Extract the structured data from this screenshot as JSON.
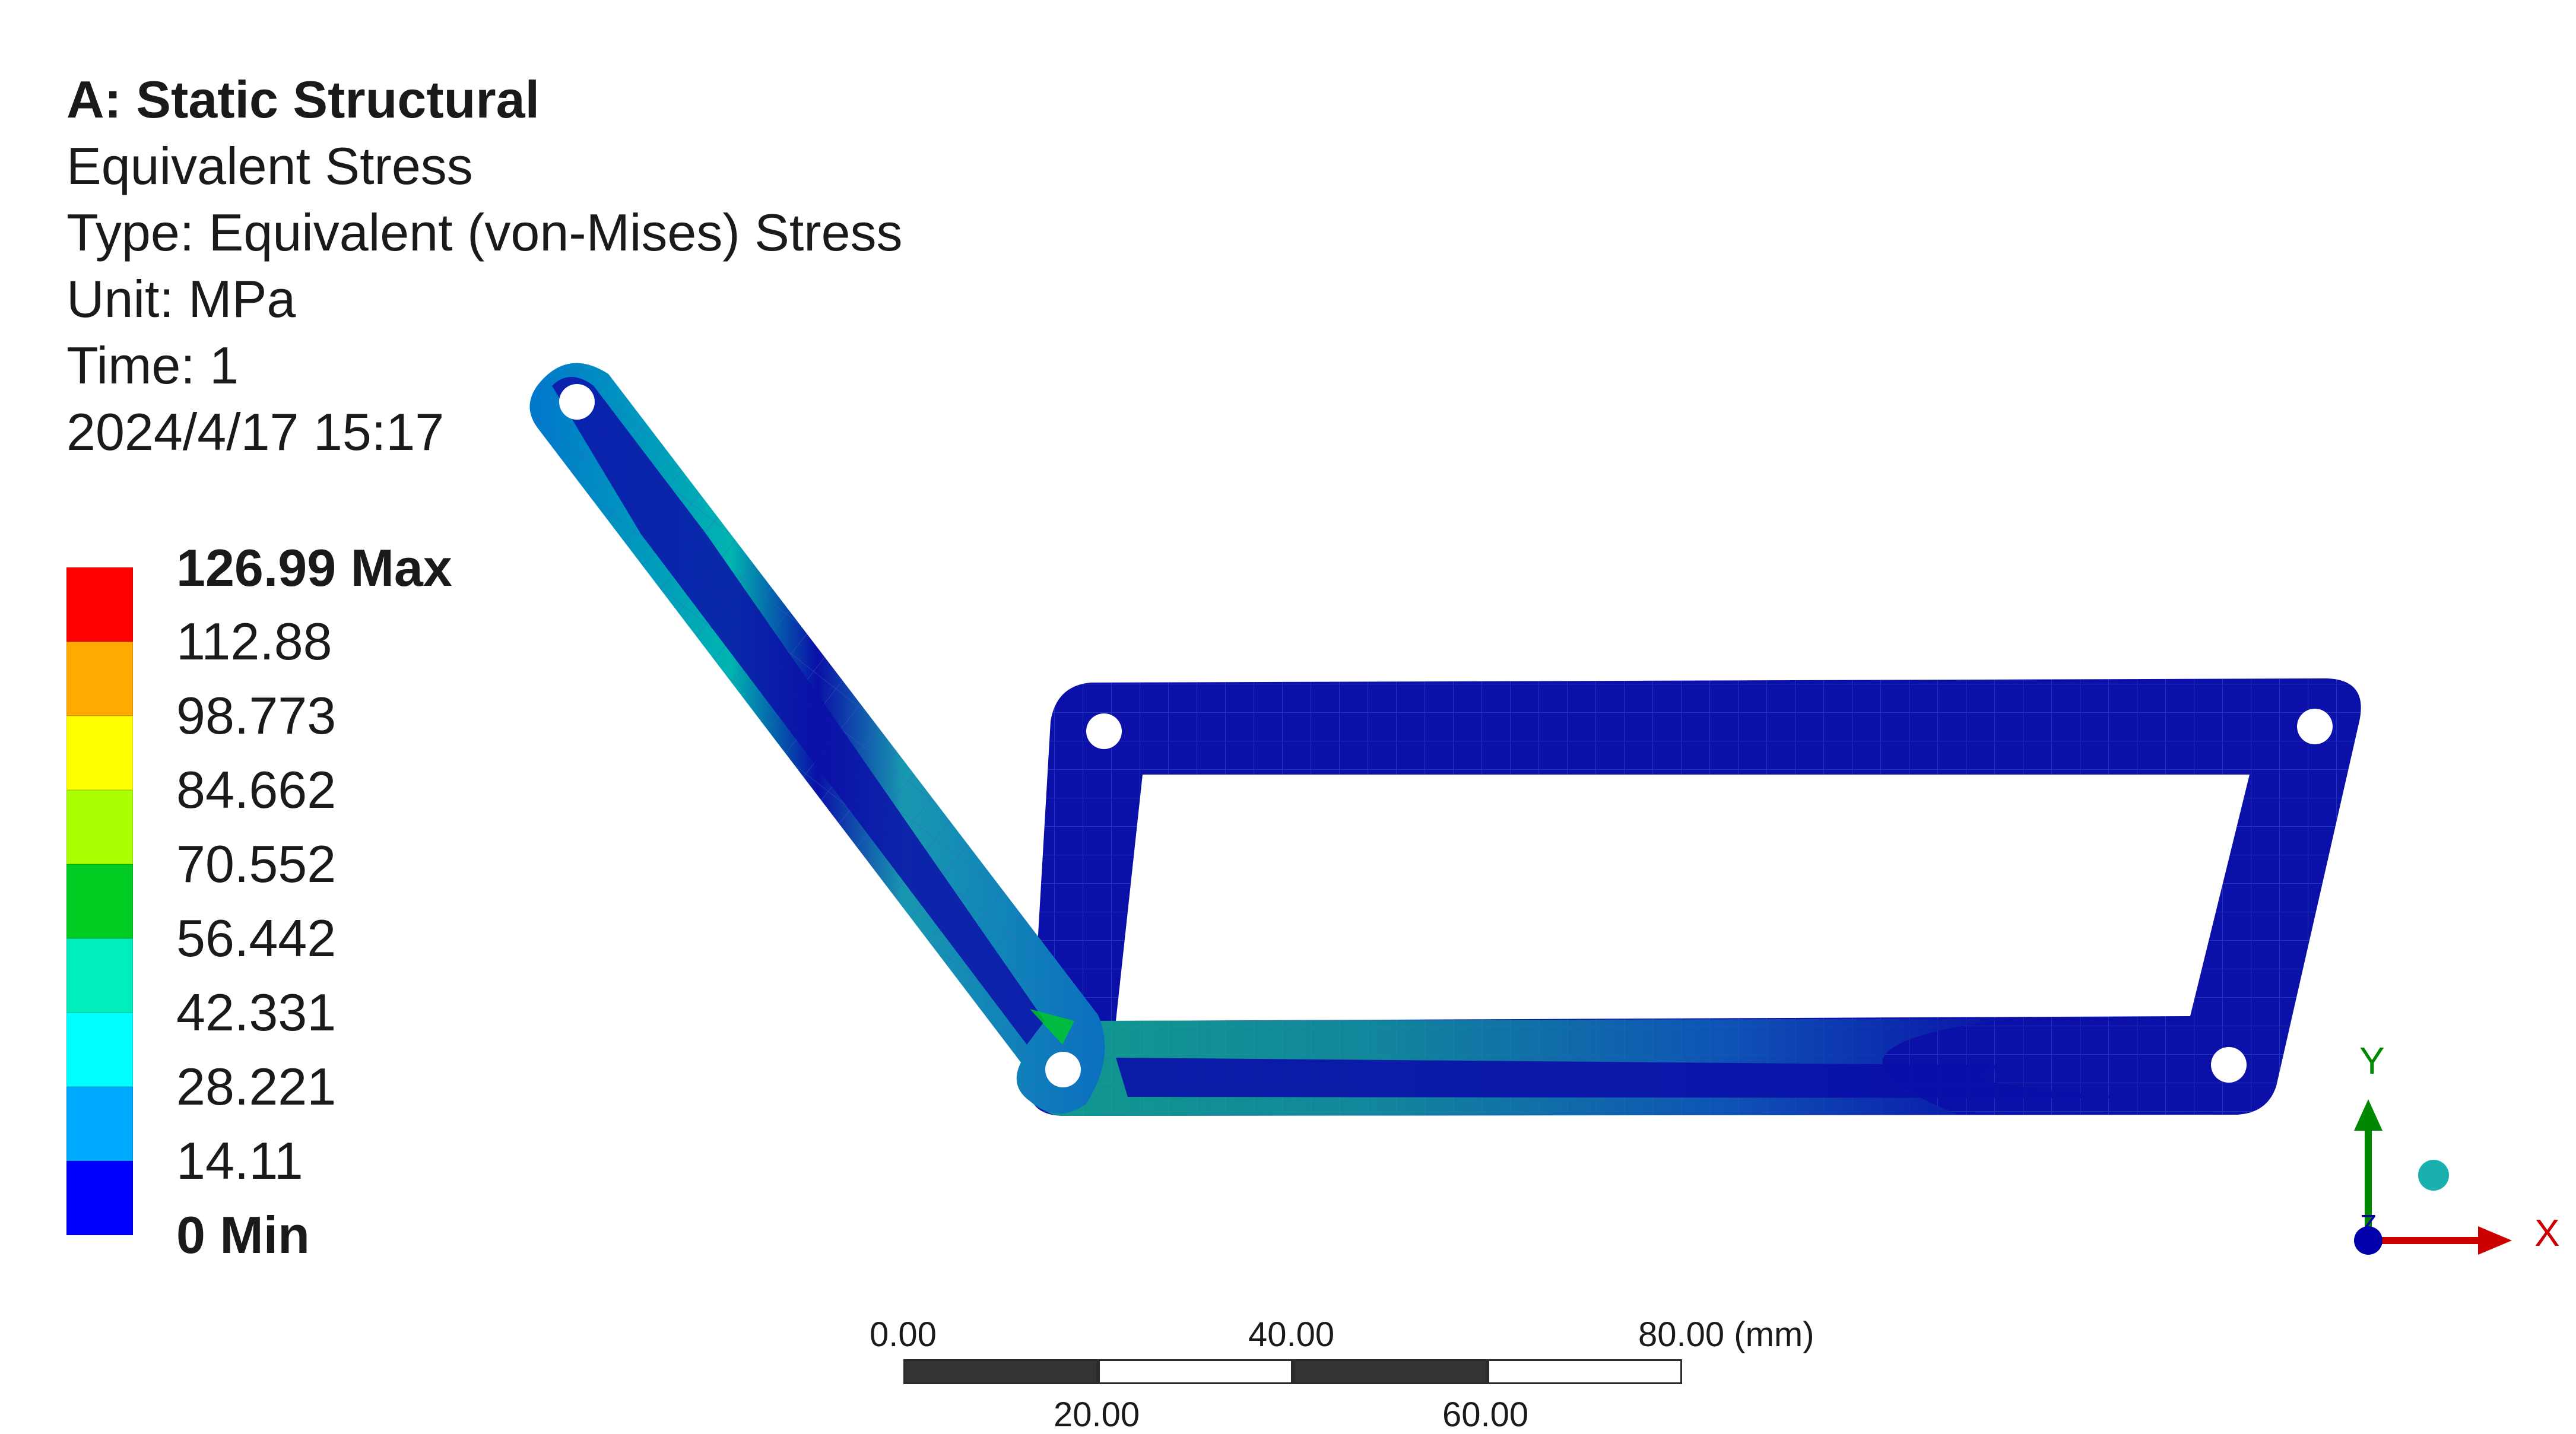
{
  "header": {
    "analysis_title": "A: Static Structural",
    "result_name": "Equivalent Stress",
    "result_type": "Type: Equivalent (von-Mises) Stress",
    "unit": "Unit: MPa",
    "time": "Time: 1",
    "timestamp": "2024/4/17 15:17"
  },
  "legend": {
    "colors": [
      "#ff0000",
      "#ffaa00",
      "#ffff00",
      "#aaff00",
      "#00cc22",
      "#00eebb",
      "#00ffff",
      "#00aaff",
      "#0000ff"
    ],
    "labels": [
      "126.99 Max",
      "112.88",
      "98.773",
      "84.662",
      "70.552",
      "56.442",
      "42.331",
      "28.221",
      "14.11",
      "0 Min"
    ]
  },
  "scale_bar": {
    "top_labels": [
      "0.00",
      "40.00",
      "80.00 (mm)"
    ],
    "bottom_labels": [
      "20.00",
      "60.00"
    ]
  },
  "triad": {
    "x_label": "X",
    "y_label": "Y",
    "z_label": "Z",
    "x_color": "#cc0000",
    "y_color": "#008800",
    "z_color": "#0000aa"
  },
  "model": {
    "body_color": "#0a10a8",
    "mesh_color": "#4a6fd0"
  }
}
